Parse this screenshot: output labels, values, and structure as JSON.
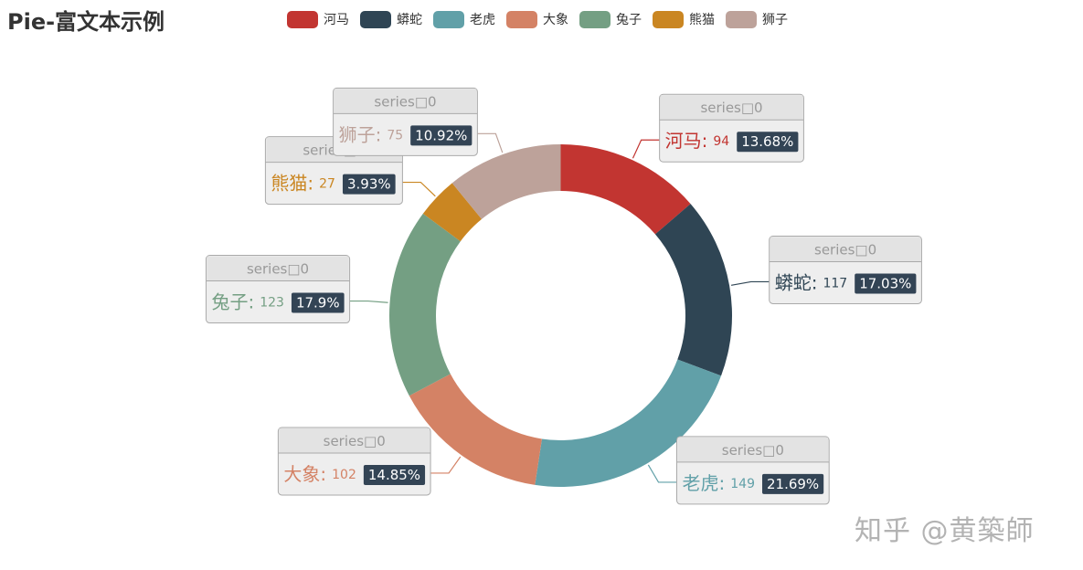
{
  "title": "Pie-富文本示例",
  "watermark": "知乎 @黄築師",
  "colors": [
    "#c23531",
    "#2f4554",
    "#61a0a8",
    "#d48265",
    "#749f83",
    "#ca8622",
    "#bda29a"
  ],
  "chart_data": {
    "type": "pie",
    "style": "donut",
    "series_name": "series□0",
    "categories": [
      "河马",
      "蟒蛇",
      "老虎",
      "大象",
      "兔子",
      "熊猫",
      "狮子"
    ],
    "values": [
      94,
      117,
      149,
      102,
      123,
      27,
      75
    ],
    "percent_labels": [
      "13.68%",
      "17.03%",
      "21.69%",
      "14.85%",
      "17.9%",
      "3.93%",
      "10.92%"
    ],
    "legend_position": "top"
  }
}
